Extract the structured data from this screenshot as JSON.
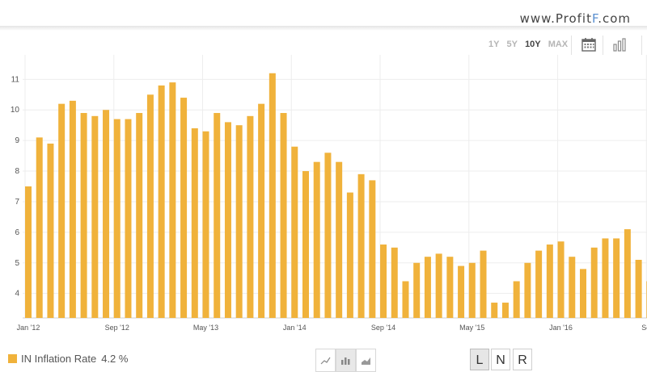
{
  "brand": {
    "prefix": "www.Profit",
    "highlight": "F",
    "suffix": ".com"
  },
  "toolbar": {
    "ranges": [
      {
        "label": "1Y",
        "active": false
      },
      {
        "label": "5Y",
        "active": false
      },
      {
        "label": "10Y",
        "active": true
      },
      {
        "label": "MAX",
        "active": false
      }
    ],
    "icons": [
      "calendar-icon",
      "bar-chart-icon"
    ]
  },
  "legend": {
    "series_name": "IN Inflation Rate",
    "value": "4.2 %",
    "color": "#f0b23b"
  },
  "chart_types": [
    {
      "icon": "line-chart-icon",
      "active": false
    },
    {
      "icon": "bar-chart-icon",
      "active": true
    },
    {
      "icon": "area-chart-icon",
      "active": false
    }
  ],
  "scale_buttons": [
    {
      "label": "L",
      "active": true
    },
    {
      "label": "N",
      "active": false
    },
    {
      "label": "R",
      "active": false
    }
  ],
  "chart_data": {
    "type": "bar",
    "title": "",
    "xlabel": "",
    "ylabel": "",
    "ylim": [
      3.2,
      11.8
    ],
    "yticks": [
      4,
      5,
      6,
      7,
      8,
      9,
      10,
      11
    ],
    "grid": true,
    "bar_color": "#f0b23b",
    "xtick_labels": [
      {
        "label": "Jan '12",
        "index": 0
      },
      {
        "label": "Sep '12",
        "index": 8
      },
      {
        "label": "May '13",
        "index": 16
      },
      {
        "label": "Jan '14",
        "index": 24
      },
      {
        "label": "Sep '14",
        "index": 32
      },
      {
        "label": "May '15",
        "index": 40
      },
      {
        "label": "Jan '16",
        "index": 48
      },
      {
        "label": "Sep '",
        "index": 56
      }
    ],
    "series": [
      {
        "values": [
          7.5,
          9.1,
          8.9,
          10.2,
          10.3,
          9.9,
          9.8,
          10.0,
          9.7,
          9.7,
          9.9,
          10.5,
          10.8,
          10.9,
          10.4,
          9.4,
          9.3,
          9.9,
          9.6,
          9.5,
          9.8,
          10.2,
          11.2,
          9.9,
          8.8,
          8.0,
          8.3,
          8.6,
          8.3,
          7.3,
          7.9,
          7.7,
          5.6,
          5.5,
          4.4,
          5.0,
          5.2,
          5.3,
          5.2,
          4.9,
          5.0,
          5.4,
          3.7,
          3.7,
          4.4,
          5.0,
          5.4,
          5.6,
          5.7,
          5.2,
          4.8,
          5.5,
          5.8,
          5.8,
          6.1,
          5.1,
          4.4
        ]
      }
    ]
  }
}
